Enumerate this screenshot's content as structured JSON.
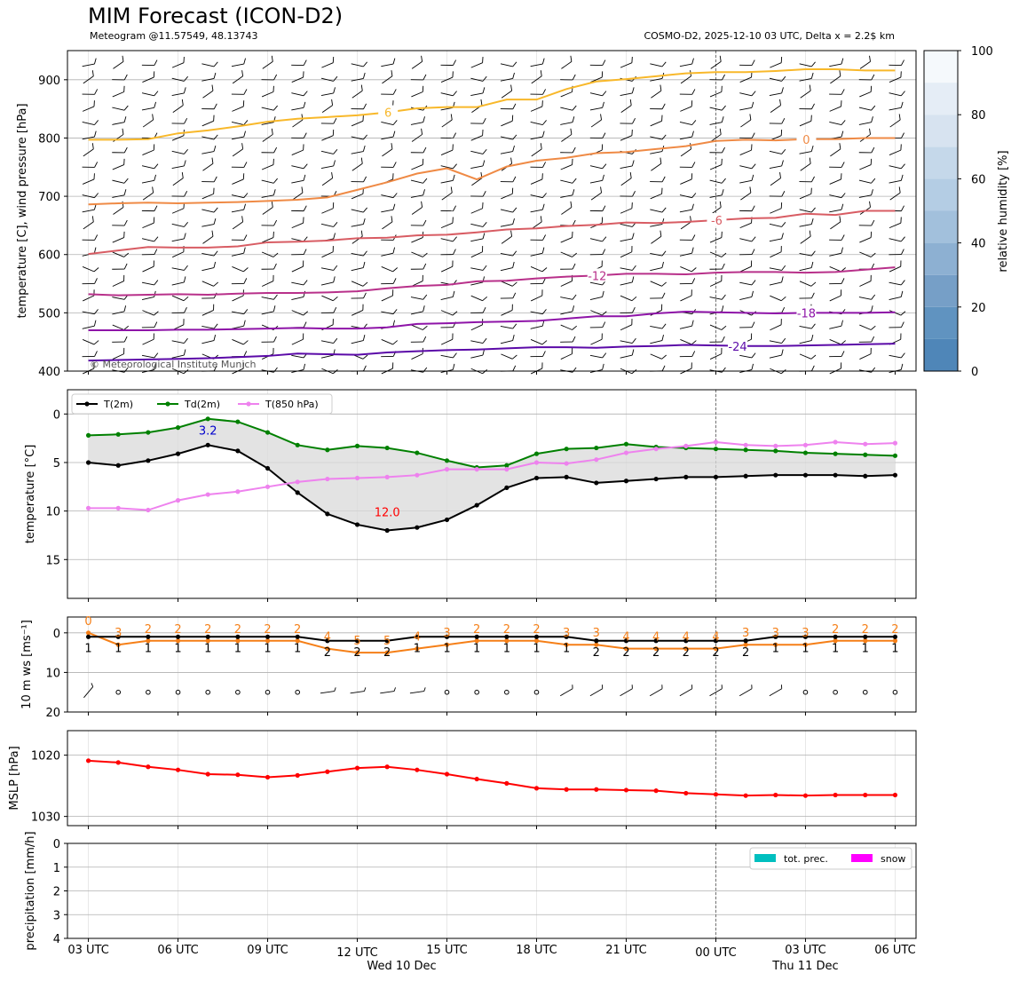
{
  "header": {
    "title": "MIM Forecast (ICON-D2)",
    "meteogram_label": "Meteogram @11.57549, 48.13743",
    "model_info": "COSMO-D2, 2025-12-10 03 UTC, Delta x = 2.2$ km",
    "copyright": "© Meteorological Institute Munich"
  },
  "time_axis": {
    "hours": [
      3,
      4,
      5,
      6,
      7,
      8,
      9,
      10,
      11,
      12,
      13,
      14,
      15,
      16,
      17,
      18,
      19,
      20,
      21,
      22,
      23,
      24,
      25,
      26,
      27,
      28,
      29,
      30
    ],
    "tick_hours": [
      3,
      6,
      9,
      12,
      15,
      18,
      21,
      24,
      27,
      30
    ],
    "tick_labels": [
      "03 UTC",
      "06 UTC",
      "09 UTC",
      "12 UTC",
      "15 UTC",
      "18 UTC",
      "21 UTC",
      "00 UTC",
      "03 UTC",
      "06 UTC"
    ],
    "day_labels": [
      {
        "hour": 12,
        "text": "Wed 10 Dec"
      },
      {
        "hour": 27,
        "text": "Thu 11 Dec"
      }
    ],
    "midnight_hour": 24
  },
  "chart_data": [
    {
      "type": "line",
      "name": "upper-air",
      "ylabel": "temperature [C], wind pressure [hPa]",
      "ylim": [
        950,
        400
      ],
      "yticks": [
        400,
        500,
        600,
        700,
        800,
        900
      ],
      "wind_levels_hpa": [
        400,
        425,
        450,
        475,
        500,
        525,
        550,
        575,
        600,
        625,
        650,
        675,
        700,
        725,
        750,
        775,
        800,
        825,
        850,
        875,
        900,
        925
      ],
      "colorbar": {
        "label": "relative humidity [%]",
        "range": [
          0,
          100
        ],
        "ticks": [
          0,
          20,
          40,
          60,
          80,
          100
        ]
      },
      "isotherms": [
        {
          "label": "-24",
          "color": "#5b0aa8",
          "label_hour": 24.7,
          "y": [
            418,
            419,
            420,
            421,
            422,
            424,
            426,
            430,
            429,
            428,
            432,
            434,
            436,
            437,
            439,
            441,
            441,
            440,
            442,
            443,
            445,
            444,
            443,
            443,
            444,
            445,
            446,
            447
          ]
        },
        {
          "label": "-18",
          "color": "#8e14a8",
          "label_hour": 27,
          "y": [
            470,
            470,
            470,
            471,
            471,
            472,
            473,
            474,
            473,
            473,
            475,
            481,
            482,
            484,
            485,
            486,
            490,
            494,
            494,
            499,
            502,
            501,
            500,
            499,
            500,
            500,
            500,
            501
          ]
        },
        {
          "label": "-12",
          "color": "#b8308a",
          "label_hour": 20,
          "y": [
            532,
            530,
            531,
            532,
            531,
            533,
            534,
            534,
            535,
            537,
            542,
            546,
            548,
            554,
            555,
            559,
            562,
            564,
            567,
            567,
            566,
            569,
            570,
            570,
            569,
            570,
            574,
            578
          ]
        },
        {
          "label": "-6",
          "color": "#d85c63",
          "label_hour": 24,
          "y": [
            601,
            607,
            613,
            612,
            612,
            614,
            621,
            622,
            624,
            628,
            629,
            633,
            634,
            638,
            643,
            645,
            649,
            651,
            655,
            654,
            656,
            659,
            662,
            663,
            670,
            668,
            675,
            675
          ]
        },
        {
          "label": "0",
          "color": "#ef8a45",
          "label_hour": 27,
          "y": [
            686,
            688,
            689,
            688,
            689,
            690,
            692,
            694,
            698,
            711,
            724,
            739,
            748,
            729,
            751,
            761,
            766,
            774,
            776,
            781,
            786,
            795,
            797,
            796,
            798,
            798,
            800,
            800
          ]
        },
        {
          "label": "6",
          "color": "#f8b82a",
          "label_hour": 13,
          "y": [
            797,
            797,
            798,
            808,
            813,
            820,
            828,
            833,
            836,
            839,
            844,
            851,
            853,
            853,
            866,
            866,
            884,
            897,
            901,
            906,
            911,
            913,
            913,
            915,
            918,
            918,
            916,
            916
          ]
        }
      ]
    },
    {
      "type": "line",
      "name": "temperature",
      "ylabel": "temperature [$^\\circ$C]",
      "ylim": [
        -2.5,
        19
      ],
      "yticks": [
        0,
        5,
        10,
        15
      ],
      "series": [
        {
          "name": "T(2m)",
          "color": "#000000",
          "values": [
            5.0,
            5.3,
            4.8,
            4.1,
            3.2,
            3.8,
            5.6,
            8.1,
            10.3,
            11.4,
            12.0,
            11.7,
            10.9,
            9.4,
            7.6,
            6.6,
            6.5,
            7.1,
            6.9,
            6.7,
            6.5,
            6.5,
            6.4,
            6.3,
            6.3,
            6.3,
            6.4,
            6.3
          ]
        },
        {
          "name": "Td(2m)",
          "color": "#008000",
          "values": [
            2.2,
            2.1,
            1.9,
            1.4,
            0.5,
            0.8,
            1.9,
            3.2,
            3.7,
            3.3,
            3.5,
            4.0,
            4.8,
            5.5,
            5.3,
            4.1,
            3.6,
            3.5,
            3.1,
            3.4,
            3.5,
            3.6,
            3.7,
            3.8,
            4.0,
            4.1,
            4.2,
            4.3
          ]
        },
        {
          "name": "T(850 hPa)",
          "color": "#ee82ee",
          "values": [
            9.7,
            9.7,
            9.9,
            8.9,
            8.3,
            8.0,
            7.5,
            7.0,
            6.7,
            6.6,
            6.5,
            6.3,
            5.7,
            5.7,
            5.7,
            5.0,
            5.1,
            4.7,
            4.0,
            3.6,
            3.3,
            2.9,
            3.2,
            3.3,
            3.2,
            2.9,
            3.1,
            3.0
          ]
        }
      ],
      "annotations": [
        {
          "text": "12.0",
          "hour": 13,
          "value": 12.0,
          "color": "#ff0000"
        },
        {
          "text": "3.2",
          "hour": 7,
          "value": 3.2,
          "color": "#0000cc"
        }
      ]
    },
    {
      "type": "line",
      "name": "wind-10m",
      "ylabel": "10 m ws [ms$^{-1}$]",
      "ylim": [
        -4,
        20
      ],
      "yticks": [
        0,
        10,
        20
      ],
      "series": [
        {
          "name": "mean wind",
          "color": "#000000",
          "values": [
            1,
            1,
            1,
            1,
            1,
            1,
            1,
            1,
            2,
            2,
            2,
            1,
            1,
            1,
            1,
            1,
            1,
            2,
            2,
            2,
            2,
            2,
            2,
            1,
            1,
            1,
            1,
            1
          ]
        },
        {
          "name": "gust",
          "color": "#f57f17",
          "values": [
            0,
            3,
            2,
            2,
            2,
            2,
            2,
            2,
            4,
            5,
            5,
            4,
            3,
            2,
            2,
            2,
            3,
            3,
            4,
            4,
            4,
            4,
            3,
            3,
            3,
            2,
            2,
            2
          ]
        }
      ],
      "calm_hours": [
        4,
        5,
        6,
        7,
        8,
        9,
        10,
        15,
        16,
        17,
        18,
        27,
        28,
        29,
        30
      ]
    },
    {
      "type": "line",
      "name": "mslp",
      "ylabel": "MSLP [hPa]",
      "ylim": [
        1016,
        1031.5
      ],
      "yticks": [
        1020,
        1030
      ],
      "series": [
        {
          "name": "MSLP",
          "color": "#ff0000",
          "values": [
            1020.9,
            1021.2,
            1021.9,
            1022.4,
            1023.1,
            1023.2,
            1023.6,
            1023.3,
            1022.7,
            1022.1,
            1021.9,
            1022.4,
            1023.1,
            1023.9,
            1024.6,
            1025.4,
            1025.6,
            1025.6,
            1025.7,
            1025.8,
            1026.2,
            1026.4,
            1026.6,
            1026.5,
            1026.6,
            1026.5,
            1026.5,
            1026.5
          ]
        }
      ]
    },
    {
      "type": "bar",
      "name": "precipitation",
      "ylabel": "precipitation [mm/h]",
      "ylim": [
        0,
        4
      ],
      "yticks": [
        0,
        1,
        2,
        3,
        4
      ],
      "series": [
        {
          "name": "tot. prec.",
          "color": "#00bfbf",
          "values": [
            0,
            0,
            0,
            0,
            0,
            0,
            0,
            0,
            0,
            0,
            0,
            0,
            0,
            0,
            0,
            0,
            0,
            0,
            0,
            0,
            0,
            0,
            0,
            0,
            0,
            0,
            0,
            0
          ]
        },
        {
          "name": "snow",
          "color": "#ff00ff",
          "values": [
            0,
            0,
            0,
            0,
            0,
            0,
            0,
            0,
            0,
            0,
            0,
            0,
            0,
            0,
            0,
            0,
            0,
            0,
            0,
            0,
            0,
            0,
            0,
            0,
            0,
            0,
            0,
            0
          ]
        }
      ]
    }
  ]
}
